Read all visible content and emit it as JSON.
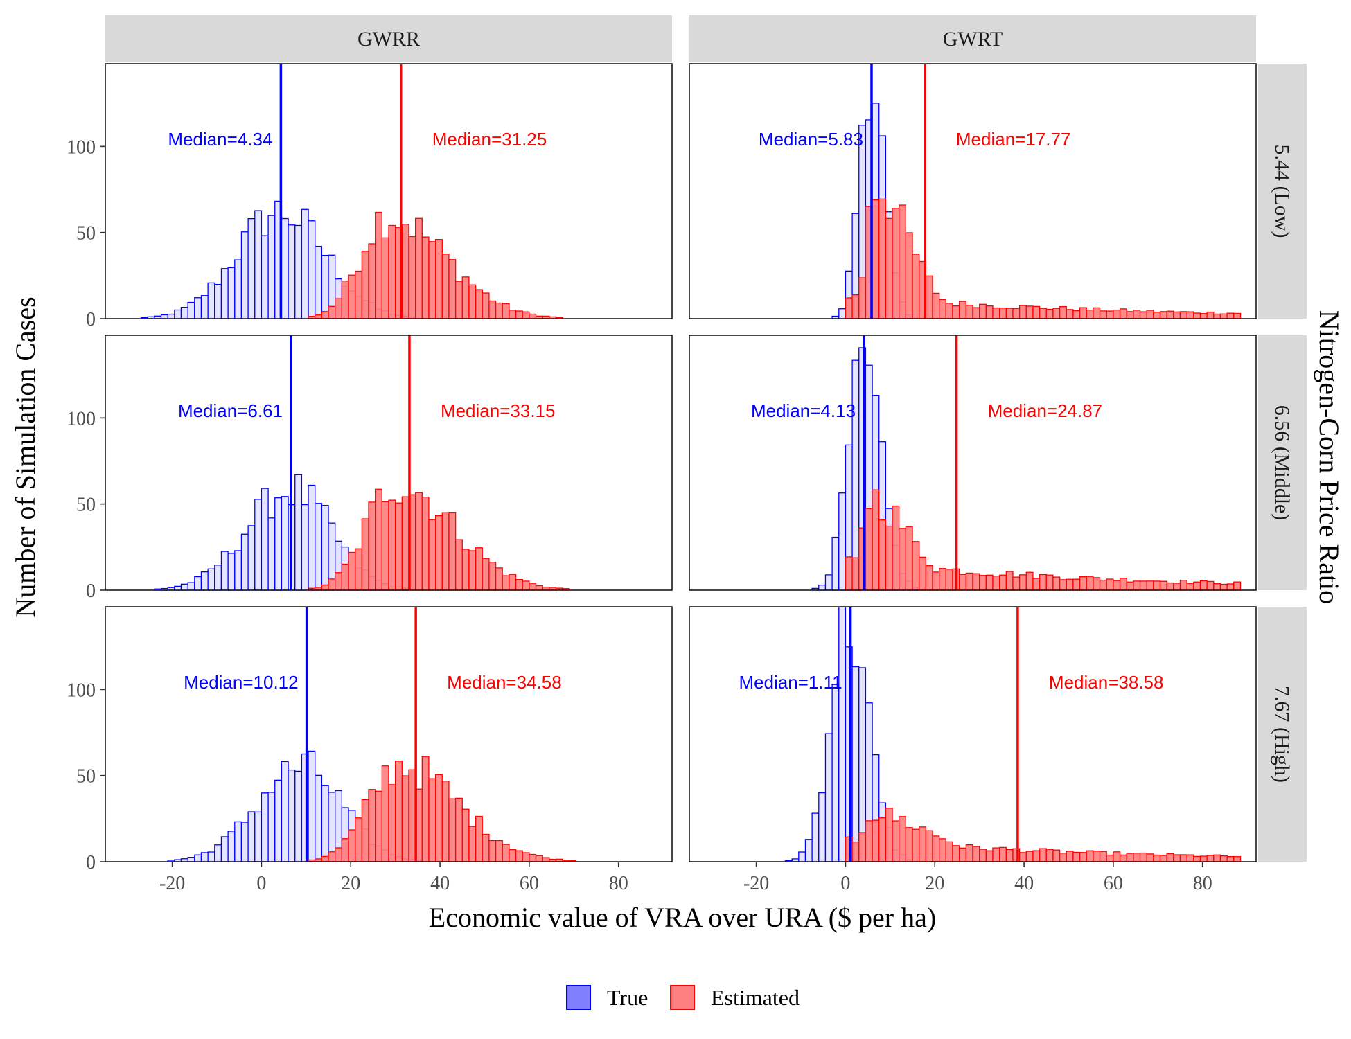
{
  "chart_data": {
    "type": "histogram",
    "xlabel": "Economic value of VRA over URA ($ per ha)",
    "ylabel": "Number of Simulation Cases",
    "facet_right_label": "Nitrogen-Corn Price Ratio",
    "columns": [
      "GWRR",
      "GWRT"
    ],
    "rows": [
      "5.44 (Low)",
      "6.56 (Middle)",
      "7.67 (High)"
    ],
    "xlim": [
      -35,
      92
    ],
    "ylim": [
      0,
      148
    ],
    "x_ticks": [
      -20,
      0,
      20,
      40,
      60,
      80
    ],
    "y_ticks": [
      0,
      50,
      100
    ],
    "bin_width": 1.5,
    "legend": {
      "position": "bottom",
      "entries": [
        {
          "key": "true",
          "label": "True",
          "fill": "#8080ff",
          "stroke": "#0000ff"
        },
        {
          "key": "estimated",
          "label": "Estimated",
          "fill": "#ff8080",
          "stroke": "#ff0000"
        }
      ]
    },
    "colors": {
      "true_line": "#0000ff",
      "estimated_line": "#ff0000",
      "true_fill": "#e5e5ff",
      "estimated_fill": "#ff8080",
      "strip_bg": "#d9d9d9"
    },
    "panels": [
      {
        "column": "GWRR",
        "row": "5.44 (Low)",
        "true_median": 4.34,
        "true_label": "Median=4.34",
        "estimated_median": 31.25,
        "estimated_label": "Median=31.25",
        "true_dist": {
          "center": 4.34,
          "sd_left": 10,
          "sd_right": 10,
          "peak": 62,
          "range": [
            -30,
            45
          ]
        },
        "estimated_dist": {
          "center": 28,
          "sd_left": 6,
          "sd_right": 13,
          "peak": 60,
          "range": [
            8,
            89
          ]
        }
      },
      {
        "column": "GWRT",
        "row": "5.44 (Low)",
        "true_median": 5.83,
        "true_label": "Median=5.83",
        "estimated_median": 17.77,
        "estimated_label": "Median=17.77",
        "true_dist": {
          "center": 5.5,
          "sd_left": 2.5,
          "sd_right": 3,
          "peak": 148,
          "range": [
            -10,
            40
          ]
        },
        "estimated_dist": {
          "center": 6,
          "sd_left": 1.5,
          "sd_right": 8,
          "peak": 78,
          "range": [
            0,
            89
          ],
          "tail": 12
        }
      },
      {
        "column": "GWRR",
        "row": "6.56 (Middle)",
        "true_median": 6.61,
        "true_label": "Median=6.61",
        "estimated_median": 33.15,
        "estimated_label": "Median=33.15",
        "true_dist": {
          "center": 6.61,
          "sd_left": 10,
          "sd_right": 9,
          "peak": 58,
          "range": [
            -28,
            48
          ]
        },
        "estimated_dist": {
          "center": 30,
          "sd_left": 6.5,
          "sd_right": 13,
          "peak": 62,
          "range": [
            8,
            89
          ]
        }
      },
      {
        "column": "GWRT",
        "row": "6.56 (Middle)",
        "true_median": 4.13,
        "true_label": "Median=4.13",
        "estimated_median": 24.87,
        "estimated_label": "Median=24.87",
        "true_dist": {
          "center": 4,
          "sd_left": 3.5,
          "sd_right": 4,
          "peak": 125,
          "range": [
            -25,
            40
          ]
        },
        "estimated_dist": {
          "center": 5,
          "sd_left": 1.5,
          "sd_right": 9,
          "peak": 54,
          "range": [
            0,
            89
          ],
          "tail": 16
        }
      },
      {
        "column": "GWRR",
        "row": "7.67 (High)",
        "true_median": 10.12,
        "true_label": "Median=10.12",
        "estimated_median": 34.58,
        "estimated_label": "Median=34.58",
        "true_dist": {
          "center": 9,
          "sd_left": 10,
          "sd_right": 9,
          "peak": 55,
          "range": [
            -30,
            50
          ]
        },
        "estimated_dist": {
          "center": 31,
          "sd_left": 7,
          "sd_right": 13,
          "peak": 56,
          "range": [
            6,
            89
          ]
        }
      },
      {
        "column": "GWRT",
        "row": "7.67 (High)",
        "true_median": 1.11,
        "true_label": "Median=1.11",
        "estimated_median": 38.58,
        "estimated_label": "Median=38.58",
        "true_dist": {
          "center": 0.5,
          "sd_left": 4,
          "sd_right": 4.5,
          "peak": 142,
          "range": [
            -24,
            40
          ]
        },
        "estimated_dist": {
          "center": 5,
          "sd_left": 1.5,
          "sd_right": 14,
          "peak": 28,
          "range": [
            0,
            89
          ],
          "tail": 12
        }
      }
    ]
  }
}
